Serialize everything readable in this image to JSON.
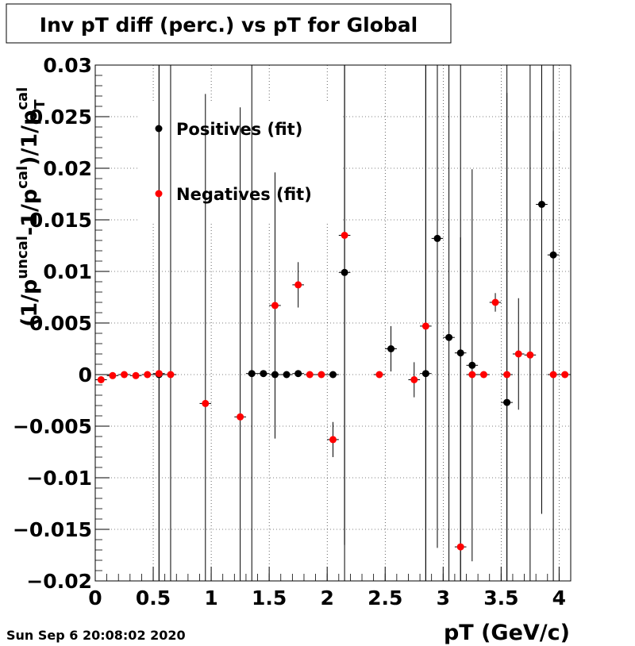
{
  "page": {
    "timestamp": "Sun Sep  6 20:08:02 2020"
  },
  "chart_data": {
    "type": "scatter",
    "title": "Inv pT diff (perc.) vs pT for Global",
    "xlabel": "pT (GeV/c)",
    "ylabel": {
      "open": "(1/p",
      "sup1": "uncal",
      "mid": "-1/p",
      "sup2": "cal",
      "close": ")/1/p",
      "sup3": "cal",
      "sub3": "T"
    },
    "xlim": [
      0,
      4.1
    ],
    "ylim": [
      -0.02,
      0.03
    ],
    "x_ticks": [
      0,
      0.5,
      1,
      1.5,
      2,
      2.5,
      3,
      3.5,
      4
    ],
    "x_tick_labels": [
      "0",
      "0.5",
      "1",
      "1.5",
      "2",
      "2.5",
      "3",
      "3.5",
      "4"
    ],
    "y_ticks": [
      -0.02,
      -0.015,
      -0.01,
      -0.005,
      0,
      0.005,
      0.01,
      0.015,
      0.02,
      0.025,
      0.03
    ],
    "y_tick_labels": [
      "−0.02",
      "−0.015",
      "−0.01",
      "−0.005",
      "0",
      "0.005",
      "0.01",
      "0.015",
      "0.02",
      "0.025",
      "0.03"
    ],
    "grid": true,
    "legend_position": "top-left",
    "series": [
      {
        "name": "Positives (fit)",
        "color": "#000000",
        "points": [
          {
            "x": 0.55,
            "y": 0.0,
            "yerr": 0.03
          },
          {
            "x": 1.35,
            "y": 0.0001,
            "yerr": 0.03
          },
          {
            "x": 1.45,
            "y": 0.0001,
            "yerr": 0.0003
          },
          {
            "x": 1.55,
            "y": 0.0,
            "yerr": 0.0003
          },
          {
            "x": 1.65,
            "y": 0.0,
            "yerr": 0.0003
          },
          {
            "x": 1.75,
            "y": 0.0001,
            "yerr": 0.0003
          },
          {
            "x": 2.05,
            "y": 0.0,
            "yerr": 0.0003
          },
          {
            "x": 2.15,
            "y": 0.0099,
            "yerr": 0.03
          },
          {
            "x": 2.55,
            "y": 0.0025,
            "yerr": 0.0022
          },
          {
            "x": 2.85,
            "y": 0.0001,
            "yerr": 0.03
          },
          {
            "x": 2.95,
            "y": 0.0132,
            "yerr": 0.03
          },
          {
            "x": 3.05,
            "y": 0.0036,
            "yerr": 0.03
          },
          {
            "x": 3.15,
            "y": 0.0021,
            "yerr": 0.03
          },
          {
            "x": 3.25,
            "y": 0.0009,
            "yerr": 0.019
          },
          {
            "x": 3.55,
            "y": -0.0027,
            "yerr": 0.03
          },
          {
            "x": 3.85,
            "y": 0.0165,
            "yerr": 0.03
          },
          {
            "x": 3.95,
            "y": 0.0116,
            "yerr": 0.012
          }
        ]
      },
      {
        "name": "Negatives (fit)",
        "color": "#ff0000",
        "points": [
          {
            "x": 0.05,
            "y": -0.0005,
            "yerr": 0.0003
          },
          {
            "x": 0.15,
            "y": -0.0001,
            "yerr": 0.0003
          },
          {
            "x": 0.25,
            "y": 0.0,
            "yerr": 0.0003
          },
          {
            "x": 0.35,
            "y": -0.0001,
            "yerr": 0.0003
          },
          {
            "x": 0.45,
            "y": 0.0,
            "yerr": 0.0003
          },
          {
            "x": 0.55,
            "y": 0.0001,
            "yerr": 0.03
          },
          {
            "x": 0.65,
            "y": 0.0,
            "yerr": 0.03
          },
          {
            "x": 0.95,
            "y": -0.0028,
            "yerr": 0.03
          },
          {
            "x": 1.25,
            "y": -0.0041,
            "yerr": 0.03
          },
          {
            "x": 1.55,
            "y": 0.0067,
            "yerr": 0.0129
          },
          {
            "x": 1.75,
            "y": 0.0087,
            "yerr": 0.0022
          },
          {
            "x": 1.85,
            "y": 0.0,
            "yerr": 0.0003
          },
          {
            "x": 1.95,
            "y": 0.0,
            "yerr": 0.0003
          },
          {
            "x": 2.05,
            "y": -0.0063,
            "yerr": 0.0017
          },
          {
            "x": 2.15,
            "y": 0.0135,
            "yerr": 0.03
          },
          {
            "x": 2.45,
            "y": 0.0,
            "yerr": 0.0003
          },
          {
            "x": 2.75,
            "y": -0.0005,
            "yerr": 0.0017
          },
          {
            "x": 2.85,
            "y": 0.0047,
            "yerr": 0.03
          },
          {
            "x": 3.15,
            "y": -0.0167,
            "yerr": 0.03
          },
          {
            "x": 3.25,
            "y": 0.0,
            "yerr": 0.0003
          },
          {
            "x": 3.35,
            "y": 0.0,
            "yerr": 0.0003
          },
          {
            "x": 3.45,
            "y": 0.007,
            "yerr": 0.0009
          },
          {
            "x": 3.55,
            "y": 0.0,
            "yerr": 0.03
          },
          {
            "x": 3.65,
            "y": 0.002,
            "yerr": 0.0054
          },
          {
            "x": 3.75,
            "y": 0.0019,
            "yerr": 0.03
          },
          {
            "x": 3.95,
            "y": 0.0,
            "yerr": 0.03
          },
          {
            "x": 4.05,
            "y": 0.0,
            "yerr": 0.0003
          }
        ]
      }
    ]
  }
}
